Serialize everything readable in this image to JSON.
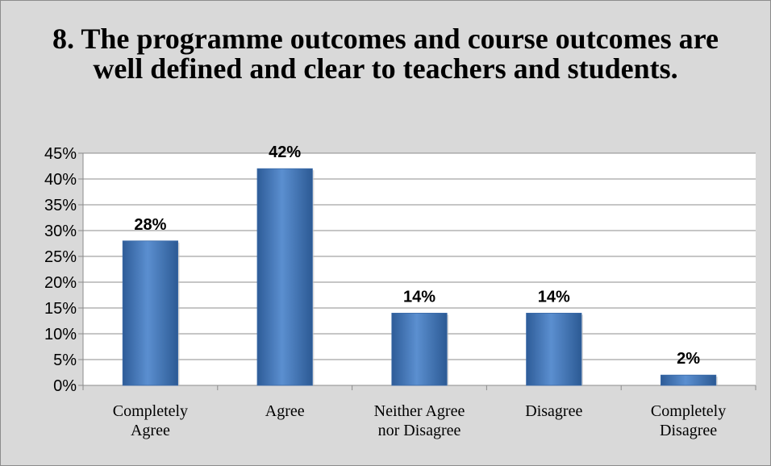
{
  "chart_data": {
    "type": "bar",
    "title": "8. The programme outcomes and course outcomes are well defined and clear to teachers and students.",
    "categories": [
      [
        "Completely",
        "Agree"
      ],
      [
        "Agree"
      ],
      [
        "Neither Agree",
        "nor Disagree"
      ],
      [
        "Disagree"
      ],
      [
        "Completely",
        "Disagree"
      ]
    ],
    "values": [
      28,
      42,
      14,
      14,
      2
    ],
    "data_labels": [
      "28%",
      "42%",
      "14%",
      "14%",
      "2%"
    ],
    "yticks": [
      "0%",
      "5%",
      "10%",
      "15%",
      "20%",
      "25%",
      "30%",
      "35%",
      "40%",
      "45%"
    ],
    "ylim": [
      0,
      45
    ],
    "grid": true,
    "legend": "none",
    "bar_color": "#4a7ebb"
  }
}
